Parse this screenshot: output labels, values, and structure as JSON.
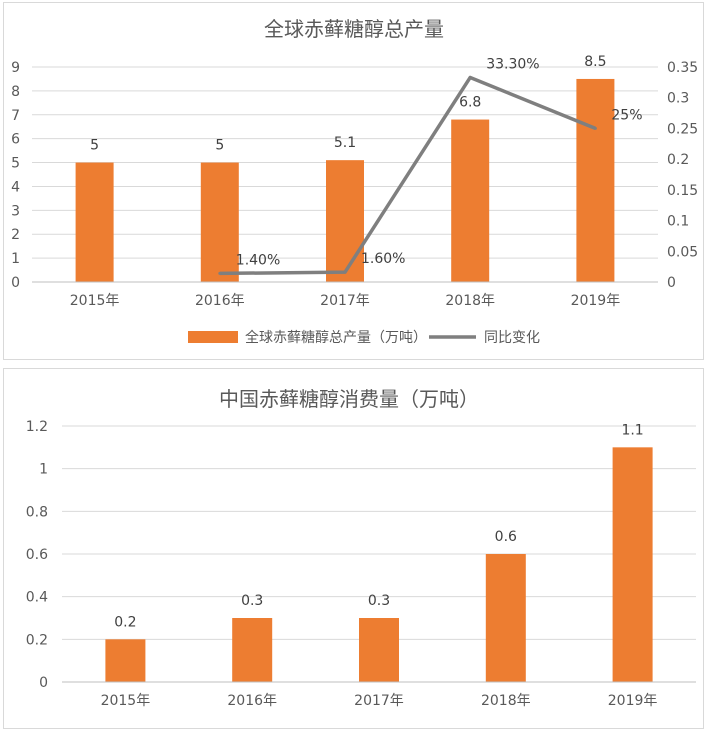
{
  "chart_data": [
    {
      "type": "bar",
      "title": "全球赤藓糖醇总产量",
      "categories": [
        "2015年",
        "2016年",
        "2017年",
        "2018年",
        "2019年"
      ],
      "series": [
        {
          "name": "全球赤藓糖醇总产量（万吨）",
          "type": "bar",
          "axis": "left",
          "values": [
            5,
            5,
            5.1,
            6.8,
            8.5
          ],
          "labels": [
            "5",
            "5",
            "5.1",
            "6.8",
            "8.5"
          ],
          "color": "#ED7D31"
        },
        {
          "name": "同比变化",
          "type": "line",
          "axis": "right",
          "values": [
            null,
            0.014,
            0.016,
            0.333,
            0.25
          ],
          "labels": [
            "",
            "1.40%",
            "1.60%",
            "33.30%",
            "25%"
          ],
          "color": "#7F7F7F"
        }
      ],
      "y_left": {
        "min": 0,
        "max": 9,
        "ticks": [
          "0",
          "1",
          "2",
          "3",
          "4",
          "5",
          "6",
          "7",
          "8",
          "9"
        ]
      },
      "y_right": {
        "min": 0,
        "max": 0.35,
        "ticks": [
          "0",
          "0.05",
          "0.1",
          "0.15",
          "0.2",
          "0.25",
          "0.3",
          "0.35"
        ]
      },
      "grid": true,
      "legend": "bottom"
    },
    {
      "type": "bar",
      "title": "中国赤藓糖醇消费量（万吨）",
      "categories": [
        "2015年",
        "2016年",
        "2017年",
        "2018年",
        "2019年"
      ],
      "values": [
        0.2,
        0.3,
        0.3,
        0.6,
        1.1
      ],
      "labels": [
        "0.2",
        "0.3",
        "0.3",
        "0.6",
        "1.1"
      ],
      "color": "#ED7D31",
      "ylim": [
        0,
        1.2
      ],
      "yticks": [
        "0",
        "0.2",
        "0.4",
        "0.6",
        "0.8",
        "1",
        "1.2"
      ],
      "grid": true
    }
  ]
}
